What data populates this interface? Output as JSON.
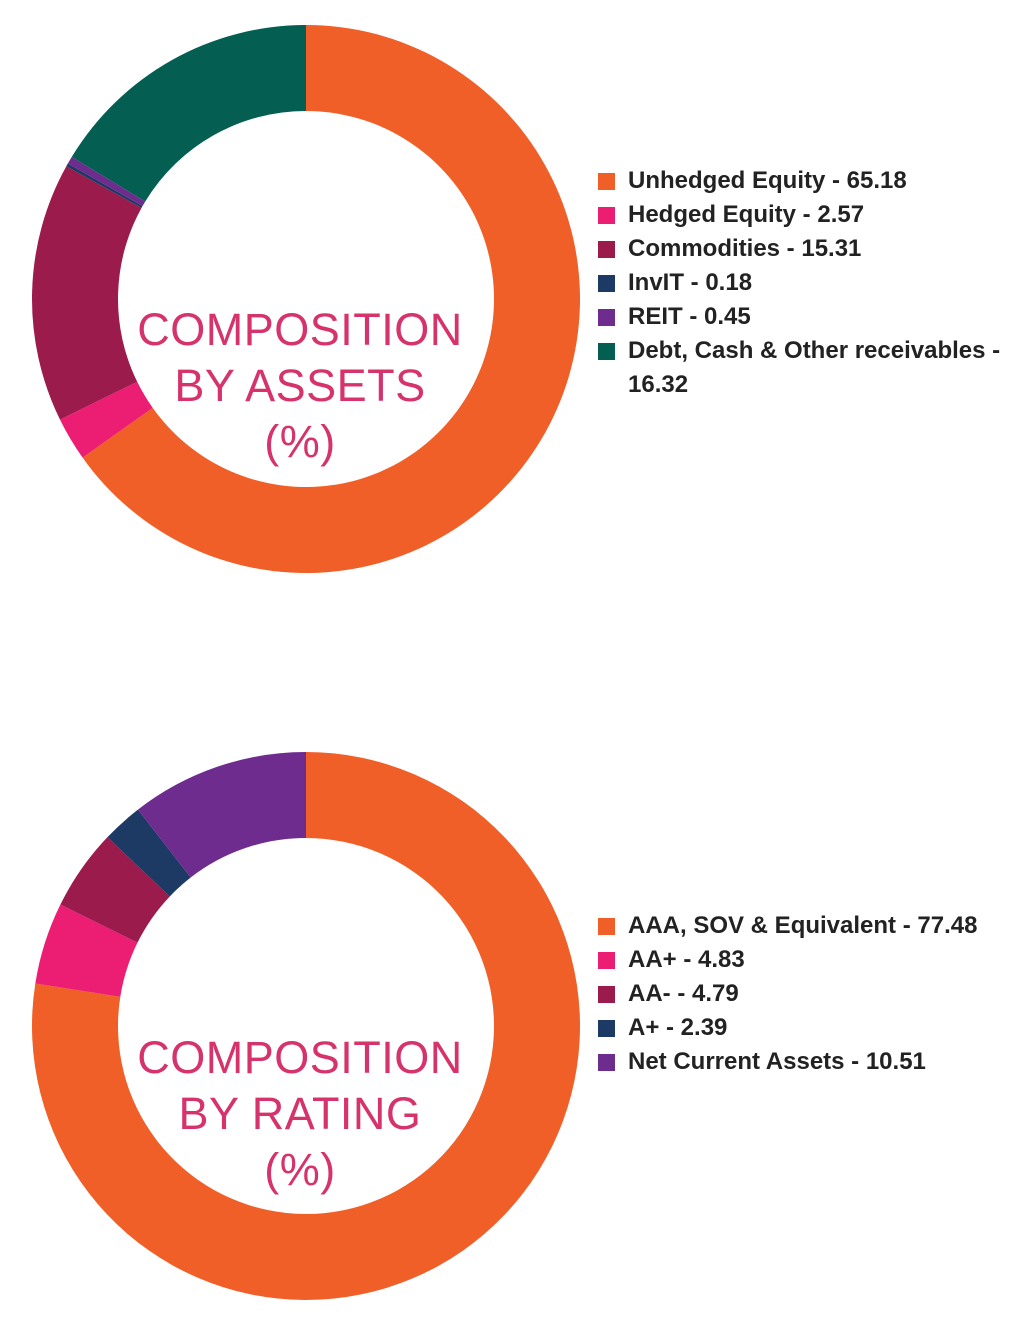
{
  "chart_data": [
    {
      "type": "pie",
      "title_lines": [
        "COMPOSITION",
        "BY ASSETS",
        "(%)"
      ],
      "categories": [
        "Unhedged Equity",
        "Hedged Equity",
        "Commodities",
        "InvIT",
        "REIT",
        "Debt, Cash & Other receivables"
      ],
      "values": [
        65.18,
        2.57,
        15.31,
        0.18,
        0.45,
        16.32
      ],
      "colors": [
        "#f05f28",
        "#eb1e73",
        "#9b1b4c",
        "#1d3a64",
        "#6e2c8f",
        "#045f52"
      ],
      "legend": [
        {
          "text": "Unhedged Equity - 65.18"
        },
        {
          "text": "Hedged Equity - 2.57"
        },
        {
          "text": "Commodities - 15.31"
        },
        {
          "text": "InvIT - 0.18"
        },
        {
          "text": "REIT - 0.45"
        },
        {
          "text": "Debt, Cash & Other receivables - 16.32"
        }
      ],
      "legend_position": "right",
      "style": "donut"
    },
    {
      "type": "pie",
      "title_lines": [
        "COMPOSITION",
        "BY RATING",
        "(%)"
      ],
      "categories": [
        "AAA, SOV & Equivalent",
        "AA+",
        "AA-",
        "A+",
        "Net Current Assets"
      ],
      "values": [
        77.48,
        4.83,
        4.79,
        2.39,
        10.51
      ],
      "colors": [
        "#f05f28",
        "#eb1e73",
        "#9b1b4c",
        "#1d3a64",
        "#6e2c8f"
      ],
      "legend": [
        {
          "text": "AAA, SOV & Equivalent - 77.48"
        },
        {
          "text": "AA+ - 4.83"
        },
        {
          "text": "AA- - 4.79"
        },
        {
          "text": "A+ - 2.39"
        },
        {
          "text": "Net Current Assets - 10.51"
        }
      ],
      "legend_position": "right",
      "style": "donut"
    }
  ]
}
